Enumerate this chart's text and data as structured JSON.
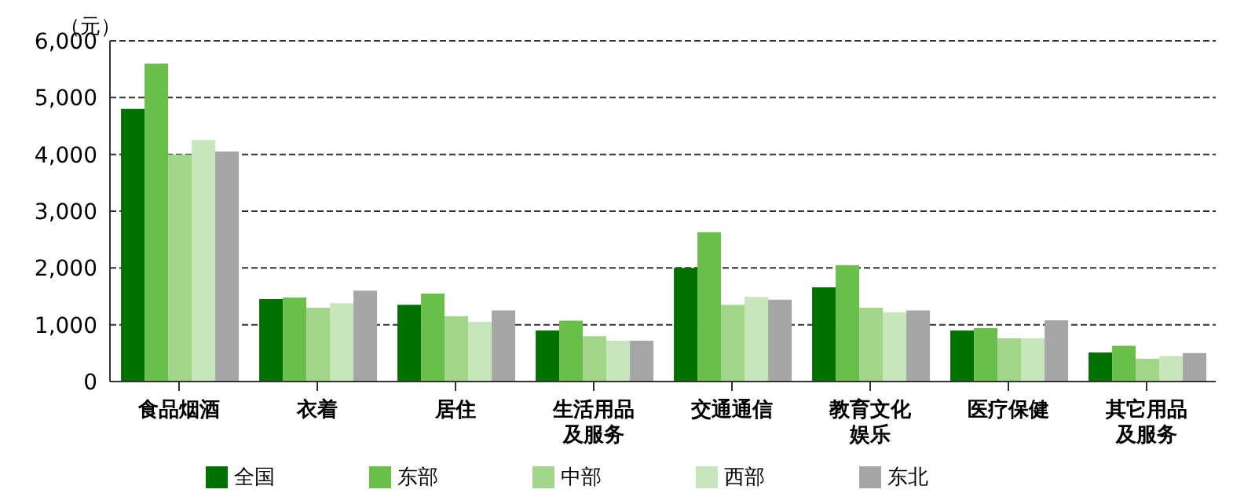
{
  "chart_data": {
    "type": "bar",
    "ylabel": "（元）",
    "categories": [
      "食品烟酒",
      "衣着",
      "居住",
      "生活用品及服务",
      "交通通信",
      "教育文化娱乐",
      "医疗保健",
      "其它用品及服务"
    ],
    "series": [
      {
        "name": "全国",
        "color": "#007000",
        "values": [
          4800,
          1450,
          1350,
          900,
          2000,
          1660,
          900,
          510
        ]
      },
      {
        "name": "东部",
        "color": "#6abf4b",
        "values": [
          5600,
          1480,
          1550,
          1070,
          2630,
          2050,
          940,
          630
        ]
      },
      {
        "name": "中部",
        "color": "#a0d58a",
        "values": [
          4000,
          1300,
          1150,
          800,
          1350,
          1300,
          760,
          400
        ]
      },
      {
        "name": "西部",
        "color": "#c8e6bb",
        "values": [
          4250,
          1380,
          1050,
          720,
          1490,
          1220,
          760,
          450
        ]
      },
      {
        "name": "东北",
        "color": "#a6a6a6",
        "values": [
          4050,
          1600,
          1250,
          720,
          1440,
          1250,
          1080,
          500
        ]
      }
    ],
    "ylim": [
      0,
      6000
    ],
    "yticks": [
      0,
      {
        "value": 1000,
        "label": "1,000"
      },
      {
        "value": 2000,
        "label": "2,000"
      },
      {
        "value": 3000,
        "label": "3,000"
      },
      {
        "value": 4000,
        "label": "4,000"
      },
      {
        "value": 5000,
        "label": "5,000"
      },
      {
        "value": 6000,
        "label": "6,000"
      }
    ],
    "grid": "y",
    "legend": "bottom"
  }
}
